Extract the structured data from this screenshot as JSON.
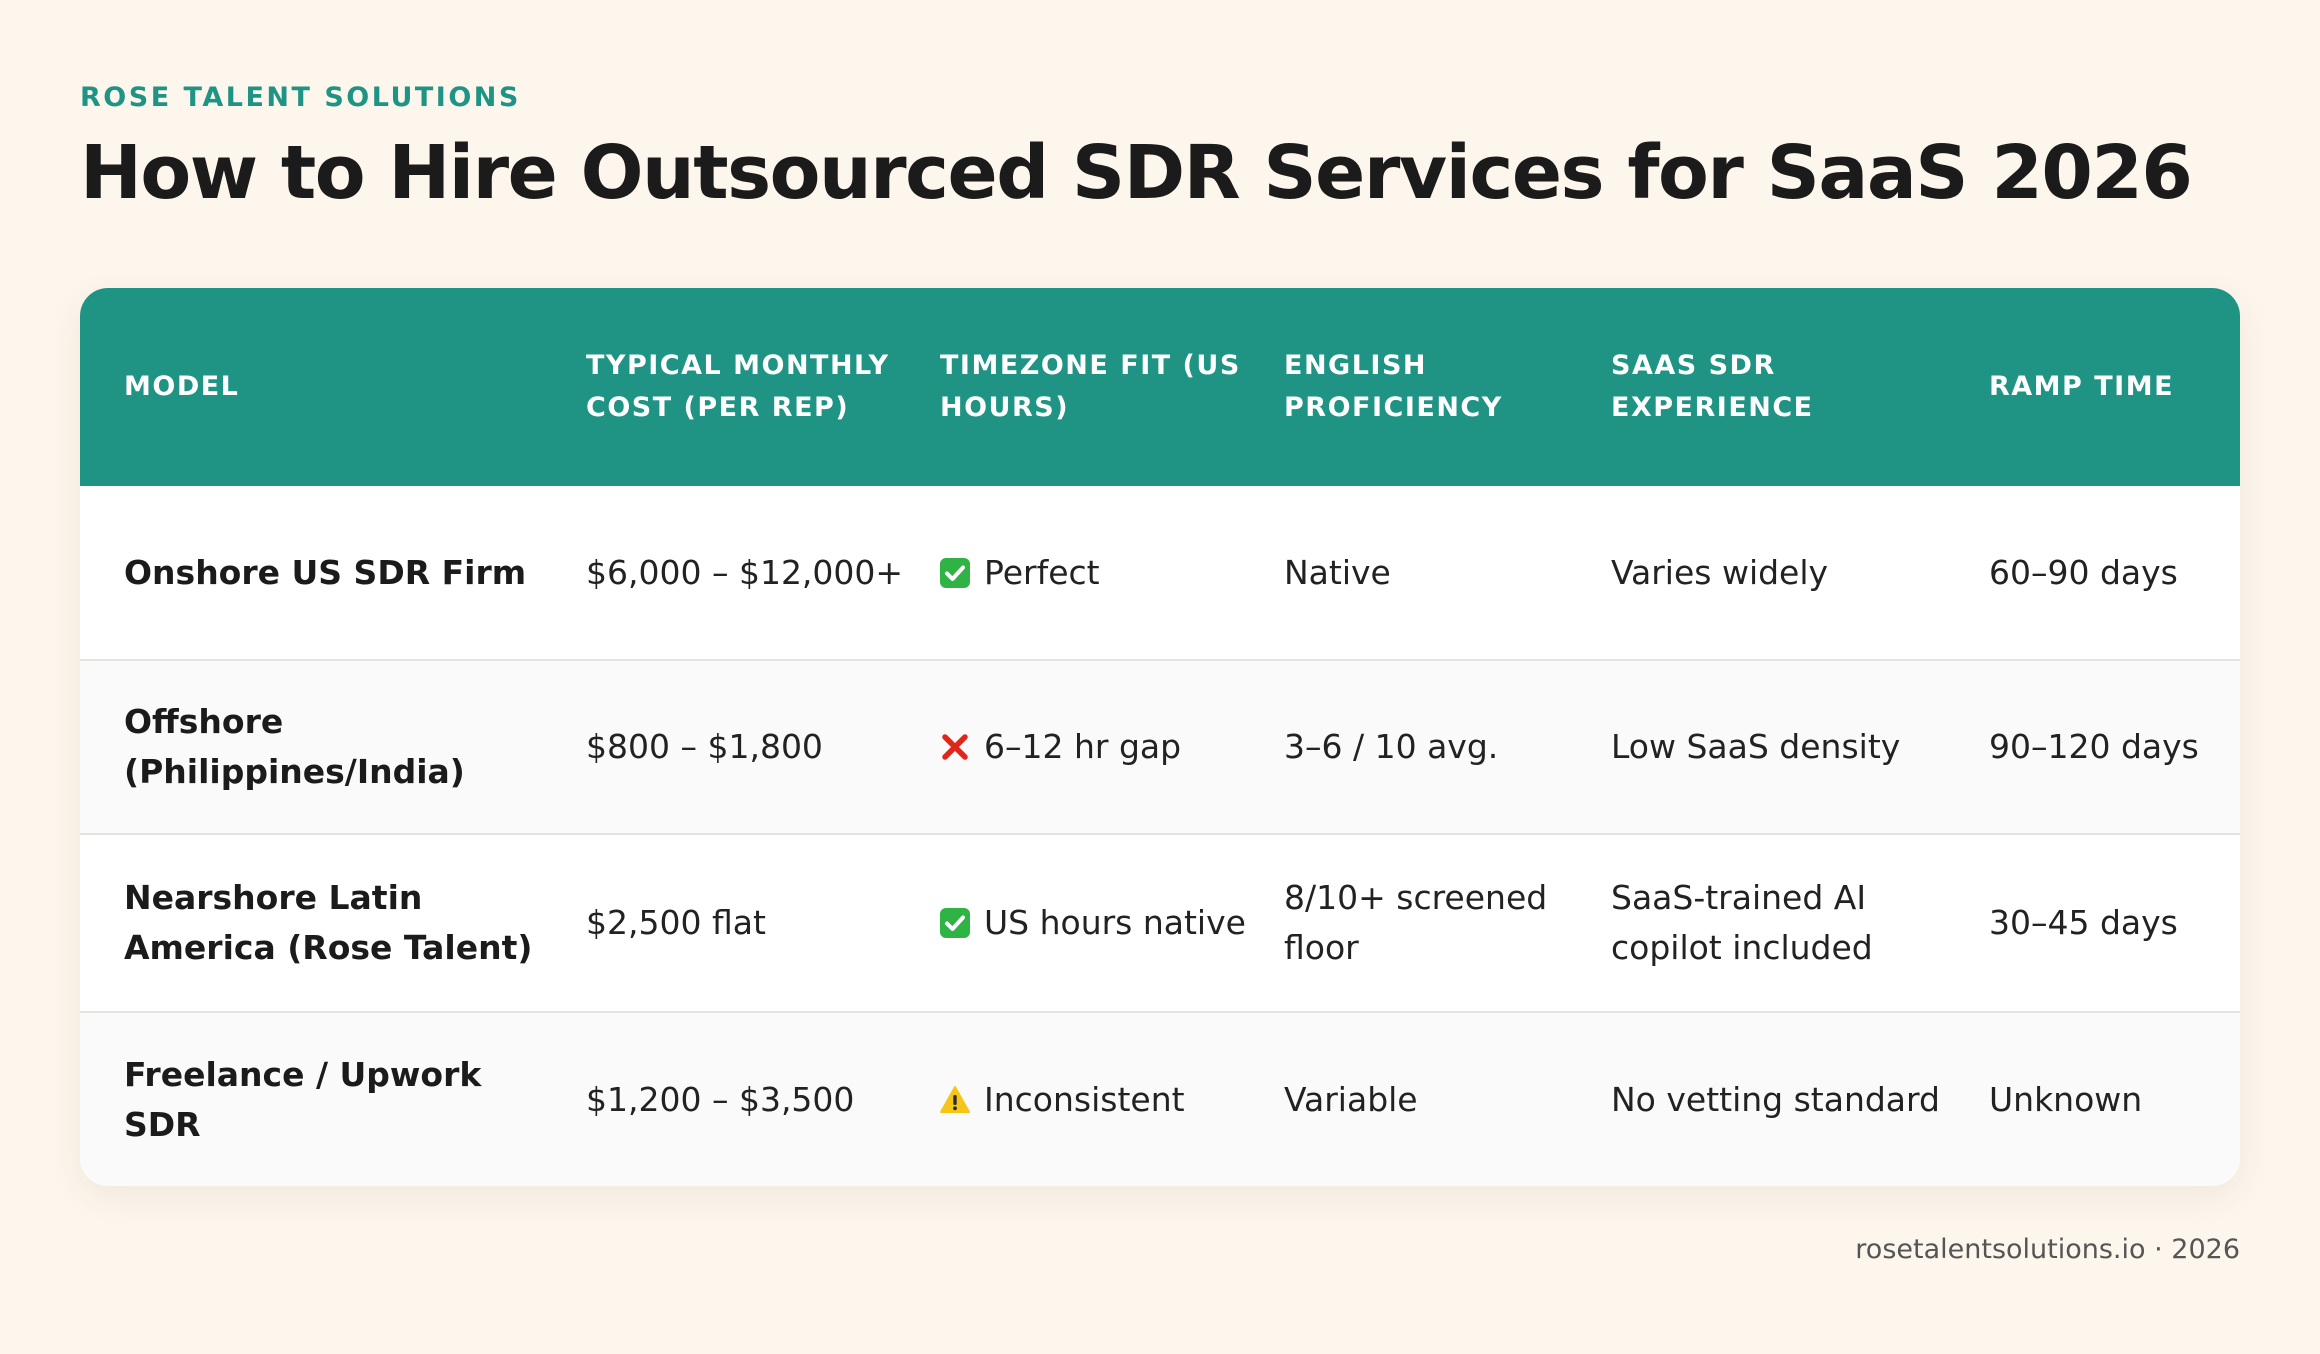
{
  "brand": "ROSE TALENT SOLUTIONS",
  "title": "How to Hire Outsourced SDR Services for SaaS 2026",
  "table": {
    "headers": [
      "MODEL",
      "TYPICAL MONTHLY COST (PER REP)",
      "TIMEZONE FIT (US HOURS)",
      "ENGLISH PROFICIENCY",
      "SAAS SDR EXPERIENCE",
      "RAMP TIME"
    ],
    "rows": [
      {
        "model": "Onshore US SDR Firm",
        "cost": "$6,000 – $12,000+",
        "timezone_icon": "check-icon",
        "timezone": "Perfect",
        "english": "Native",
        "saas": "Varies widely",
        "ramp": "60–90 days"
      },
      {
        "model": "Offshore (Philippines/India)",
        "cost": "$800 – $1,800",
        "timezone_icon": "cross-icon",
        "timezone": "6–12 hr gap",
        "english": "3–6 / 10 avg.",
        "saas": "Low SaaS density",
        "ramp": "90–120 days"
      },
      {
        "model": "Nearshore Latin America (Rose Talent)",
        "cost": "$2,500 flat",
        "timezone_icon": "check-icon",
        "timezone": "US hours native",
        "english": "8/10+ screened floor",
        "saas": "SaaS-trained AI copilot included",
        "ramp": "30–45 days"
      },
      {
        "model": "Freelance / Upwork SDR",
        "cost": "$1,200 – $3,500",
        "timezone_icon": "warning-icon",
        "timezone": "Inconsistent",
        "english": "Variable",
        "saas": "No vetting standard",
        "ramp": "Unknown"
      }
    ]
  },
  "footer": "rosetalentsolutions.io · 2026",
  "colors": {
    "accent": "#1f9384",
    "background": "#fdf6ed",
    "check": "#2fb344",
    "cross": "#e0261b",
    "warning": "#f5c518"
  }
}
